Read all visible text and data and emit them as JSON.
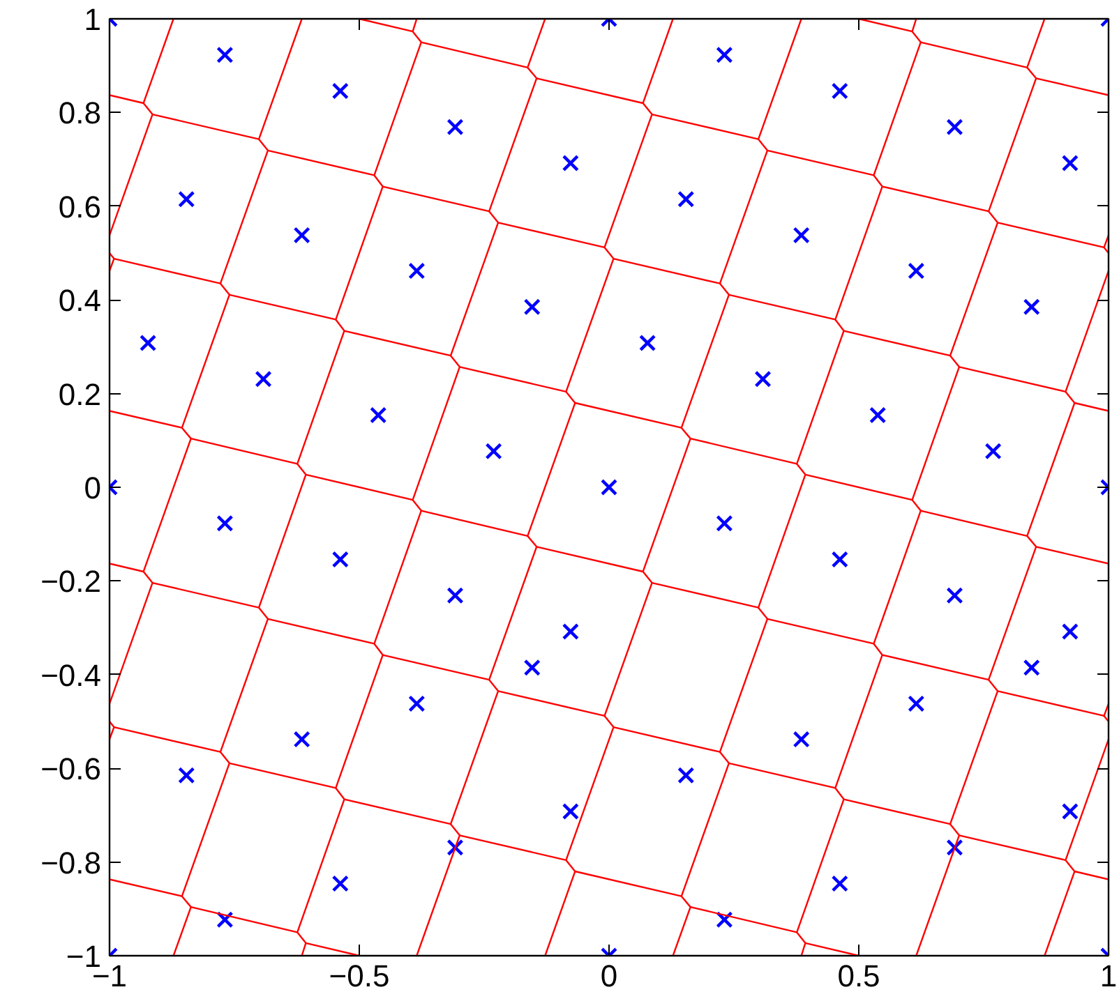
{
  "chart_data": {
    "type": "scatter",
    "xlim": [
      -1,
      1
    ],
    "ylim": [
      -1,
      1
    ],
    "xticks": [
      {
        "value": -1,
        "label": "−1"
      },
      {
        "value": -0.5,
        "label": "−0.5"
      },
      0,
      0.5,
      1
    ],
    "yticks": [
      {
        "value": -1,
        "label": "−1"
      },
      {
        "value": -0.8,
        "label": "−0.8"
      },
      {
        "value": -0.6,
        "label": "−0.6"
      },
      {
        "value": -0.4,
        "label": "−0.4"
      },
      {
        "value": -0.2,
        "label": "−0.2"
      },
      0,
      0.2,
      0.4,
      0.6,
      0.8,
      1
    ],
    "grid": false,
    "series": [
      {
        "color": "#0000ff",
        "marker": "cross",
        "x": [
          -1,
          0,
          1,
          0.231,
          -0.769,
          0.462,
          -0.538,
          0.692,
          -0.308,
          0.923,
          -0.077,
          0.154,
          -0.846,
          0.385,
          -0.615,
          0.615,
          -0.385,
          0.846,
          -0.154,
          0.077,
          -0.923,
          0.308,
          -0.692,
          0.538,
          -0.462,
          0.769,
          -0.231,
          -1,
          0,
          1,
          -0.769,
          0.231,
          -0.538,
          0.462,
          -0.308,
          0.692,
          -0.077,
          0.923,
          -0.154,
          0.846,
          -0.385,
          0.615,
          -0.615,
          0.385,
          -0.846,
          0.154,
          -0.077,
          0.923,
          -0.308,
          0.692,
          -0.538,
          0.462,
          -0.769,
          0.231,
          -1,
          0,
          1
        ],
        "values": [
          1,
          1,
          1,
          0.923,
          0.923,
          0.846,
          0.846,
          0.769,
          0.769,
          0.692,
          0.692,
          0.615,
          0.615,
          0.538,
          0.538,
          0.462,
          0.462,
          0.385,
          0.385,
          0.308,
          0.308,
          0.231,
          0.231,
          0.154,
          0.154,
          0.077,
          0.077,
          0,
          0,
          0,
          -0.077,
          -0.077,
          -0.154,
          -0.154,
          -0.231,
          -0.231,
          -0.308,
          -0.308,
          -0.385,
          -0.385,
          -0.462,
          -0.462,
          -0.538,
          -0.538,
          -0.615,
          -0.615,
          -0.692,
          -0.692,
          -0.769,
          -0.769,
          -0.846,
          -0.846,
          -0.923,
          -0.923,
          -1,
          -1,
          -1
        ]
      },
      {
        "type": "line",
        "color": "#ff0000",
        "x": [
          -0.872,
          -0.932,
          -0.914,
          -1
        ],
        "values": [
          1,
          0.82,
          0.796,
          0.538
        ]
      },
      {
        "type": "line",
        "color": "#ff0000",
        "x": [
          -1,
          -0.991,
          -1
        ],
        "values": [
          0.5,
          0.488,
          0.462
        ]
      },
      {
        "type": "line",
        "color": "#ff0000",
        "x": [
          -0.615,
          -0.701,
          -0.683,
          -0.778,
          -0.76,
          -0.855,
          -0.837,
          -0.932,
          -0.914,
          -1
        ],
        "values": [
          1,
          0.743,
          0.719,
          0.435,
          0.411,
          0.127,
          0.104,
          -0.18,
          -0.204,
          -0.462
        ]
      },
      {
        "type": "line",
        "color": "#ff0000",
        "x": [
          -1,
          -0.991,
          -1
        ],
        "values": [
          -0.5,
          -0.512,
          -0.538
        ]
      },
      {
        "type": "line",
        "color": "#ff0000",
        "x": [
          -0.385,
          -0.393,
          -0.376,
          -0.47,
          -0.453,
          -0.547,
          -0.53,
          -0.624,
          -0.607,
          -0.701,
          -0.683,
          -0.778,
          -0.76,
          -0.855,
          -0.837,
          -0.872
        ],
        "values": [
          1,
          0.973,
          0.95,
          0.666,
          0.642,
          0.358,
          0.334,
          0.05,
          0.027,
          -0.257,
          -0.281,
          -0.565,
          -0.589,
          -0.873,
          -0.896,
          -1
        ]
      },
      {
        "type": "line",
        "color": "#ff0000",
        "x": [
          -0.128,
          -0.163,
          -0.145,
          -0.24,
          -0.222,
          -0.317,
          -0.299,
          -0.393,
          -0.376,
          -0.47,
          -0.453,
          -0.547,
          -0.53,
          -0.624,
          -0.607,
          -0.615
        ],
        "values": [
          1,
          0.896,
          0.873,
          0.589,
          0.565,
          0.281,
          0.257,
          -0.027,
          -0.05,
          -0.334,
          -0.358,
          -0.642,
          -0.666,
          -0.95,
          -0.973,
          -1
        ]
      },
      {
        "type": "line",
        "color": "#ff0000",
        "x": [
          0.128,
          0.068,
          0.086,
          -0.009,
          0.009,
          -0.086,
          -0.068,
          -0.163,
          -0.145,
          -0.24,
          -0.222,
          -0.317,
          -0.299,
          -0.385
        ],
        "values": [
          1,
          0.82,
          0.796,
          0.512,
          0.488,
          0.204,
          0.18,
          -0.104,
          -0.127,
          -0.411,
          -0.435,
          -0.719,
          -0.743,
          -1
        ]
      },
      {
        "type": "line",
        "color": "#ff0000",
        "x": [
          0.385,
          0.299,
          0.317,
          0.222,
          0.24,
          0.145,
          0.163,
          0.068,
          0.086,
          -0.009,
          0.009,
          -0.086,
          -0.068,
          -0.128
        ],
        "values": [
          1,
          0.743,
          0.719,
          0.435,
          0.411,
          0.127,
          0.104,
          -0.18,
          -0.204,
          -0.488,
          -0.512,
          -0.796,
          -0.82,
          -1
        ]
      },
      {
        "type": "line",
        "color": "#ff0000",
        "x": [
          0.615,
          0.607,
          0.624,
          0.53,
          0.547,
          0.453,
          0.47,
          0.376,
          0.393,
          0.299,
          0.317,
          0.222,
          0.24,
          0.145,
          0.163,
          0.128
        ],
        "values": [
          1,
          0.973,
          0.95,
          0.666,
          0.642,
          0.358,
          0.334,
          0.05,
          0.027,
          -0.257,
          -0.281,
          -0.565,
          -0.589,
          -0.873,
          -0.896,
          -1
        ]
      },
      {
        "type": "line",
        "color": "#ff0000",
        "x": [
          0.872,
          0.837,
          0.855,
          0.76,
          0.778,
          0.683,
          0.701,
          0.607,
          0.624,
          0.53,
          0.547,
          0.453,
          0.47,
          0.376,
          0.393,
          0.385
        ],
        "values": [
          1,
          0.896,
          0.873,
          0.589,
          0.565,
          0.281,
          0.257,
          -0.027,
          -0.05,
          -0.334,
          -0.358,
          -0.642,
          -0.666,
          -0.95,
          -0.973,
          -1
        ]
      },
      {
        "type": "line",
        "color": "#ff0000",
        "x": [
          1,
          0.991,
          1
        ],
        "values": [
          0.538,
          0.512,
          0.5
        ]
      },
      {
        "type": "line",
        "color": "#ff0000",
        "x": [
          1,
          0.914,
          0.932,
          0.837,
          0.855,
          0.76,
          0.778,
          0.683,
          0.701,
          0.615
        ],
        "values": [
          0.462,
          0.204,
          0.18,
          -0.104,
          -0.127,
          -0.411,
          -0.435,
          -0.719,
          -0.743,
          -1
        ]
      },
      {
        "type": "line",
        "color": "#ff0000",
        "x": [
          1,
          0.991,
          1
        ],
        "values": [
          -0.462,
          -0.488,
          -0.5
        ]
      },
      {
        "type": "line",
        "color": "#ff0000",
        "x": [
          1,
          0.914,
          0.932,
          0.872
        ],
        "values": [
          -0.538,
          -0.796,
          -0.82,
          -1
        ]
      },
      {
        "type": "line",
        "color": "#ff0000",
        "x": [
          -0.932,
          -1
        ],
        "values": [
          0.82,
          0.837
        ]
      },
      {
        "type": "line",
        "color": "#ff0000",
        "x": [
          -0.932,
          -1
        ],
        "values": [
          -0.18,
          -0.163
        ]
      },
      {
        "type": "line",
        "color": "#ff0000",
        "x": [
          -0.855,
          -1
        ],
        "values": [
          0.127,
          0.163
        ]
      },
      {
        "type": "line",
        "color": "#ff0000",
        "x": [
          -0.778,
          -0.991
        ],
        "values": [
          0.435,
          0.488
        ]
      },
      {
        "type": "line",
        "color": "#ff0000",
        "x": [
          -0.701,
          -0.914
        ],
        "values": [
          0.743,
          0.796
        ]
      },
      {
        "type": "line",
        "color": "#ff0000",
        "x": [
          -0.855,
          -1
        ],
        "values": [
          -0.873,
          -0.837
        ]
      },
      {
        "type": "line",
        "color": "#ff0000",
        "x": [
          -0.778,
          -0.991
        ],
        "values": [
          -0.565,
          -0.512
        ]
      },
      {
        "type": "line",
        "color": "#ff0000",
        "x": [
          -0.701,
          -0.914
        ],
        "values": [
          -0.257,
          -0.204
        ]
      },
      {
        "type": "line",
        "color": "#ff0000",
        "x": [
          -0.624,
          -0.837
        ],
        "values": [
          0.05,
          0.104
        ]
      },
      {
        "type": "line",
        "color": "#ff0000",
        "x": [
          -0.547,
          -0.76
        ],
        "values": [
          0.358,
          0.411
        ]
      },
      {
        "type": "line",
        "color": "#ff0000",
        "x": [
          -0.47,
          -0.683
        ],
        "values": [
          0.666,
          0.719
        ]
      },
      {
        "type": "line",
        "color": "#ff0000",
        "x": [
          -0.393,
          -0.5
        ],
        "values": [
          0.973,
          1
        ]
      },
      {
        "type": "line",
        "color": "#ff0000",
        "x": [
          -0.624,
          -0.837
        ],
        "values": [
          -0.95,
          -0.896
        ]
      },
      {
        "type": "line",
        "color": "#ff0000",
        "x": [
          -0.547,
          -0.76
        ],
        "values": [
          -0.642,
          -0.589
        ]
      },
      {
        "type": "line",
        "color": "#ff0000",
        "x": [
          -0.47,
          -0.683
        ],
        "values": [
          -0.334,
          -0.281
        ]
      },
      {
        "type": "line",
        "color": "#ff0000",
        "x": [
          -0.393,
          -0.607
        ],
        "values": [
          -0.027,
          0.027
        ]
      },
      {
        "type": "line",
        "color": "#ff0000",
        "x": [
          -0.317,
          -0.53
        ],
        "values": [
          0.281,
          0.334
        ]
      },
      {
        "type": "line",
        "color": "#ff0000",
        "x": [
          -0.24,
          -0.453
        ],
        "values": [
          0.589,
          0.642
        ]
      },
      {
        "type": "line",
        "color": "#ff0000",
        "x": [
          -0.163,
          -0.376
        ],
        "values": [
          0.896,
          0.95
        ]
      },
      {
        "type": "line",
        "color": "#ff0000",
        "x": [
          -0.5,
          -0.607
        ],
        "values": [
          -1,
          -0.973
        ]
      },
      {
        "type": "line",
        "color": "#ff0000",
        "x": [
          -0.317,
          -0.53
        ],
        "values": [
          -0.719,
          -0.666
        ]
      },
      {
        "type": "line",
        "color": "#ff0000",
        "x": [
          -0.24,
          -0.453
        ],
        "values": [
          -0.411,
          -0.358
        ]
      },
      {
        "type": "line",
        "color": "#ff0000",
        "x": [
          -0.163,
          -0.376
        ],
        "values": [
          -0.104,
          -0.05
        ]
      },
      {
        "type": "line",
        "color": "#ff0000",
        "x": [
          -0.086,
          -0.299
        ],
        "values": [
          0.204,
          0.257
        ]
      },
      {
        "type": "line",
        "color": "#ff0000",
        "x": [
          -0.009,
          -0.222
        ],
        "values": [
          0.512,
          0.565
        ]
      },
      {
        "type": "line",
        "color": "#ff0000",
        "x": [
          0.068,
          -0.145
        ],
        "values": [
          0.82,
          0.873
        ]
      },
      {
        "type": "line",
        "color": "#ff0000",
        "x": [
          -0.086,
          -0.299
        ],
        "values": [
          -0.796,
          -0.743
        ]
      },
      {
        "type": "line",
        "color": "#ff0000",
        "x": [
          -0.009,
          -0.222
        ],
        "values": [
          -0.488,
          -0.435
        ]
      },
      {
        "type": "line",
        "color": "#ff0000",
        "x": [
          0.068,
          -0.145
        ],
        "values": [
          -0.18,
          -0.127
        ]
      },
      {
        "type": "line",
        "color": "#ff0000",
        "x": [
          0.145,
          -0.068
        ],
        "values": [
          0.127,
          0.18
        ]
      },
      {
        "type": "line",
        "color": "#ff0000",
        "x": [
          0.222,
          0.009
        ],
        "values": [
          0.435,
          0.488
        ]
      },
      {
        "type": "line",
        "color": "#ff0000",
        "x": [
          0.299,
          0.086
        ],
        "values": [
          0.743,
          0.796
        ]
      },
      {
        "type": "line",
        "color": "#ff0000",
        "x": [
          0.145,
          -0.068
        ],
        "values": [
          -0.873,
          -0.82
        ]
      },
      {
        "type": "line",
        "color": "#ff0000",
        "x": [
          0.222,
          0.009
        ],
        "values": [
          -0.565,
          -0.512
        ]
      },
      {
        "type": "line",
        "color": "#ff0000",
        "x": [
          0.299,
          0.086
        ],
        "values": [
          -0.257,
          -0.204
        ]
      },
      {
        "type": "line",
        "color": "#ff0000",
        "x": [
          0.376,
          0.163
        ],
        "values": [
          0.05,
          0.104
        ]
      },
      {
        "type": "line",
        "color": "#ff0000",
        "x": [
          0.453,
          0.24
        ],
        "values": [
          0.358,
          0.411
        ]
      },
      {
        "type": "line",
        "color": "#ff0000",
        "x": [
          0.53,
          0.317
        ],
        "values": [
          0.666,
          0.719
        ]
      },
      {
        "type": "line",
        "color": "#ff0000",
        "x": [
          0.607,
          0.5
        ],
        "values": [
          0.973,
          1
        ]
      },
      {
        "type": "line",
        "color": "#ff0000",
        "x": [
          0.376,
          0.163
        ],
        "values": [
          -0.95,
          -0.896
        ]
      },
      {
        "type": "line",
        "color": "#ff0000",
        "x": [
          0.453,
          0.24
        ],
        "values": [
          -0.642,
          -0.589
        ]
      },
      {
        "type": "line",
        "color": "#ff0000",
        "x": [
          0.53,
          0.317
        ],
        "values": [
          -0.334,
          -0.281
        ]
      },
      {
        "type": "line",
        "color": "#ff0000",
        "x": [
          0.607,
          0.393
        ],
        "values": [
          -0.027,
          0.027
        ]
      },
      {
        "type": "line",
        "color": "#ff0000",
        "x": [
          0.683,
          0.47
        ],
        "values": [
          0.281,
          0.334
        ]
      },
      {
        "type": "line",
        "color": "#ff0000",
        "x": [
          0.76,
          0.547
        ],
        "values": [
          0.589,
          0.642
        ]
      },
      {
        "type": "line",
        "color": "#ff0000",
        "x": [
          0.837,
          0.624
        ],
        "values": [
          0.896,
          0.95
        ]
      },
      {
        "type": "line",
        "color": "#ff0000",
        "x": [
          0.5,
          0.393
        ],
        "values": [
          -1,
          -0.973
        ]
      },
      {
        "type": "line",
        "color": "#ff0000",
        "x": [
          0.683,
          0.47
        ],
        "values": [
          -0.719,
          -0.666
        ]
      },
      {
        "type": "line",
        "color": "#ff0000",
        "x": [
          0.76,
          0.547
        ],
        "values": [
          -0.411,
          -0.358
        ]
      },
      {
        "type": "line",
        "color": "#ff0000",
        "x": [
          0.837,
          0.624
        ],
        "values": [
          -0.104,
          -0.05
        ]
      },
      {
        "type": "line",
        "color": "#ff0000",
        "x": [
          0.914,
          0.701
        ],
        "values": [
          0.204,
          0.257
        ]
      },
      {
        "type": "line",
        "color": "#ff0000",
        "x": [
          0.991,
          0.778
        ],
        "values": [
          0.512,
          0.565
        ]
      },
      {
        "type": "line",
        "color": "#ff0000",
        "x": [
          1,
          0.855
        ],
        "values": [
          0.837,
          0.873
        ]
      },
      {
        "type": "line",
        "color": "#ff0000",
        "x": [
          0.914,
          0.701
        ],
        "values": [
          -0.796,
          -0.743
        ]
      },
      {
        "type": "line",
        "color": "#ff0000",
        "x": [
          0.991,
          0.778
        ],
        "values": [
          -0.488,
          -0.435
        ]
      },
      {
        "type": "line",
        "color": "#ff0000",
        "x": [
          1,
          0.855
        ],
        "values": [
          -0.163,
          -0.127
        ]
      },
      {
        "type": "line",
        "color": "#ff0000",
        "x": [
          1,
          0.932
        ],
        "values": [
          0.163,
          0.18
        ]
      },
      {
        "type": "line",
        "color": "#ff0000",
        "x": [
          1,
          0.932
        ],
        "values": [
          -0.837,
          -0.82
        ]
      }
    ]
  }
}
